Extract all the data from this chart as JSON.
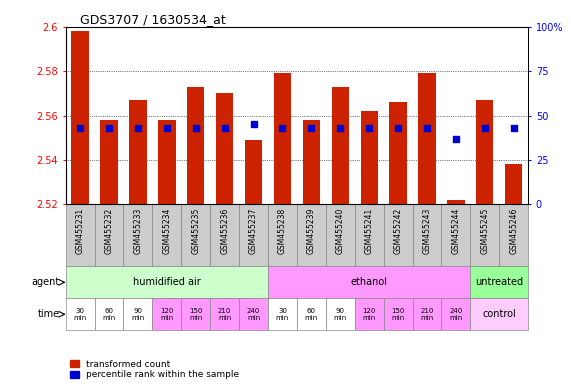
{
  "title": "GDS3707 / 1630534_at",
  "samples": [
    "GSM455231",
    "GSM455232",
    "GSM455233",
    "GSM455234",
    "GSM455235",
    "GSM455236",
    "GSM455237",
    "GSM455238",
    "GSM455239",
    "GSM455240",
    "GSM455241",
    "GSM455242",
    "GSM455243",
    "GSM455244",
    "GSM455245",
    "GSM455246"
  ],
  "transformed_count": [
    2.598,
    2.558,
    2.567,
    2.558,
    2.573,
    2.57,
    2.549,
    2.579,
    2.558,
    2.573,
    2.562,
    2.566,
    2.579,
    2.522,
    2.567,
    2.538
  ],
  "percentile_rank": [
    43,
    43,
    43,
    43,
    43,
    43,
    45,
    43,
    43,
    43,
    43,
    43,
    43,
    37,
    43,
    43
  ],
  "ymin": 2.52,
  "ymax": 2.6,
  "yticks": [
    2.52,
    2.54,
    2.56,
    2.58,
    2.6
  ],
  "ytick_labels": [
    "2.52",
    "2.54",
    "2.56",
    "2.58",
    "2.6"
  ],
  "y2ticks": [
    0,
    25,
    50,
    75,
    100
  ],
  "y2tick_labels": [
    "0",
    "25",
    "50",
    "75",
    "100%"
  ],
  "bar_color": "#cc2200",
  "dot_color": "#0000cc",
  "bg_color": "#ffffff",
  "sample_box_color": "#cccccc",
  "agent_groups": [
    {
      "label": "humidified air",
      "start": 0,
      "end": 7,
      "color": "#ccffcc"
    },
    {
      "label": "ethanol",
      "start": 7,
      "end": 14,
      "color": "#ff99ff"
    },
    {
      "label": "untreated",
      "start": 14,
      "end": 16,
      "color": "#99ff99"
    }
  ],
  "time_labels": [
    "30\nmin",
    "60\nmin",
    "90\nmin",
    "120\nmin",
    "150\nmin",
    "210\nmin",
    "240\nmin",
    "30\nmin",
    "60\nmin",
    "90\nmin",
    "120\nmin",
    "150\nmin",
    "210\nmin",
    "240\nmin"
  ],
  "time_colors": [
    "#ffffff",
    "#ffffff",
    "#ffffff",
    "#ff99ff",
    "#ff99ff",
    "#ff99ff",
    "#ff99ff",
    "#ffffff",
    "#ffffff",
    "#ffffff",
    "#ff99ff",
    "#ff99ff",
    "#ff99ff",
    "#ff99ff"
  ],
  "control_label": "control",
  "control_color": "#ffccff",
  "agent_label": "agent",
  "time_label": "time",
  "legend": [
    {
      "label": "transformed count",
      "color": "#cc2200"
    },
    {
      "label": "percentile rank within the sample",
      "color": "#0000cc"
    }
  ]
}
